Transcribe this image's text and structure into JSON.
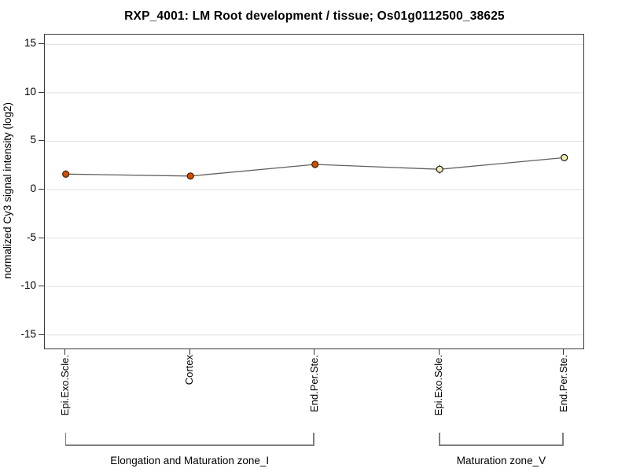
{
  "chart_data": {
    "type": "line",
    "title": "RXP_4001: LM Root development / tissue; Os01g0112500_38625",
    "ylabel": "normalized Cy3 signal intensity (log2)",
    "xlabel": "",
    "ylim": [
      -16.4,
      16.0
    ],
    "yticks": [
      15,
      10,
      5,
      0,
      -5,
      -10,
      -15
    ],
    "grid": "horizontal",
    "legend": "none",
    "categories": [
      "Epi.Exo.Scle.",
      "Cortex",
      "End.Per.Ste.",
      "Epi.Exo.Scle.",
      "End.Per.Ste."
    ],
    "values": [
      1.6,
      1.4,
      2.6,
      2.1,
      3.3
    ],
    "errors": [
      0.4,
      0.25,
      0.35,
      0.45,
      0.3
    ],
    "point_fill": [
      "#cd4f00",
      "#cd4f00",
      "#cd4f00",
      "#eeeeb0",
      "#eeeeb0"
    ],
    "point_stroke": [
      "#402000",
      "#402000",
      "#402000",
      "#1a1a1a",
      "#1a1a1a"
    ],
    "groups": [
      {
        "label": "Elongation and Maturation zone_I",
        "from_index": 0,
        "to_index": 2
      },
      {
        "label": "Maturation zone_V",
        "from_index": 3,
        "to_index": 4
      }
    ],
    "colors": {
      "line": "#606060",
      "grid": "#e0e0e0",
      "error_bar": "#2a2a2a",
      "bracket": "#808080",
      "axis_border": "#3a3a3a",
      "text": "#000000"
    }
  }
}
